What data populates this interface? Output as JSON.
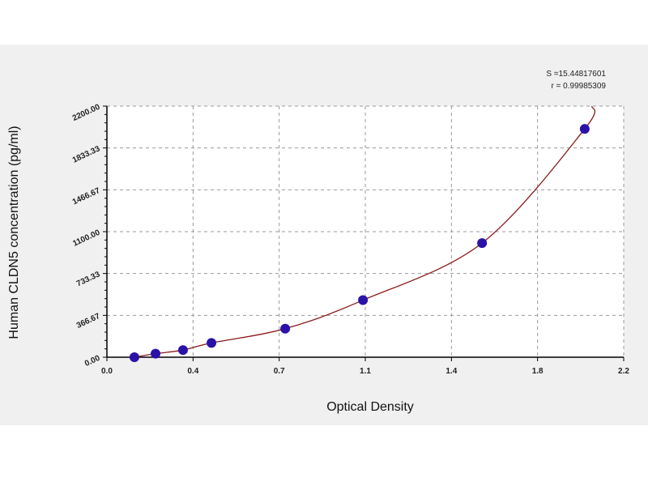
{
  "chart_data": {
    "type": "scatter",
    "xlabel": "Optical Density",
    "ylabel": "Human  CLDN5 concentration (pg/ml)",
    "xlim": [
      0.0,
      2.2
    ],
    "ylim": [
      0,
      2200
    ],
    "x_ticks": [
      "0.0",
      "0.4",
      "0.7",
      "1.1",
      "1.4",
      "1.8",
      "2.2"
    ],
    "x_tick_values": [
      0,
      0.3667,
      0.7333,
      1.1,
      1.4667,
      1.8333,
      2.2
    ],
    "y_ticks": [
      "0.00",
      "366.67",
      "733.33",
      "1100.00",
      "1466.67",
      "1833.33",
      "2200.00"
    ],
    "y_tick_values": [
      0,
      366.67,
      733.33,
      1100,
      1466.67,
      1833.33,
      2200
    ],
    "grid": true,
    "points": {
      "x": [
        0.117,
        0.207,
        0.324,
        0.445,
        0.759,
        1.09,
        1.597,
        2.034
      ],
      "y": [
        0,
        31.25,
        62.5,
        125,
        250,
        500,
        1000,
        2000
      ]
    },
    "fit_curve": true,
    "stats": [
      "S =15.44817601",
      "r = 0.99985309"
    ],
    "colors": {
      "points": "#2a12a8",
      "curve": "#8b1a1a",
      "grid": "#999999",
      "background": "#f0f0f0",
      "plot_bg": "#ffffff"
    }
  }
}
